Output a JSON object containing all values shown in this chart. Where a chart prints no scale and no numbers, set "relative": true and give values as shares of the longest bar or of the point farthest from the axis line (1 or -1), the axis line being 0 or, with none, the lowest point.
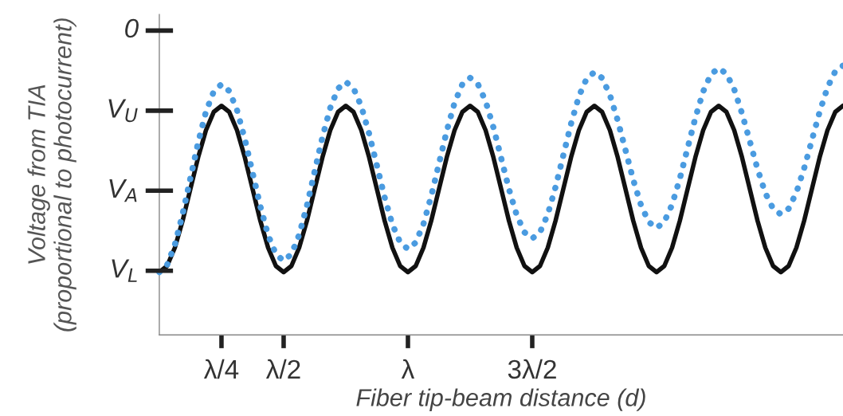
{
  "chart_data": {
    "type": "line",
    "relative": true,
    "xlabel": "Fiber tip-beam distance (d)",
    "ylabel": "Voltage from TIA\n(proportional to photocurrent)",
    "categories": [
      null,
      null,
      null,
      null,
      null,
      null,
      null,
      null,
      "λ/4",
      null,
      null,
      null,
      null,
      null,
      null,
      null,
      "λ/2",
      null,
      null,
      null,
      null,
      null,
      null,
      null,
      null,
      null,
      null,
      null,
      null,
      null,
      null,
      null,
      "λ",
      null,
      null,
      null,
      null,
      null,
      null,
      null,
      null,
      null,
      null,
      null,
      null,
      null,
      null,
      null,
      "3λ/2",
      null,
      null,
      null,
      null,
      null,
      null,
      null,
      null,
      null,
      null,
      null,
      null,
      null,
      null,
      null,
      null,
      null,
      null,
      null,
      null,
      null,
      null,
      null,
      null,
      null,
      null,
      null,
      null,
      null,
      null,
      null,
      null,
      null,
      null,
      null,
      null,
      null,
      null,
      null,
      null
    ],
    "annotations": [
      "0",
      "V$_{U}$",
      "V$_{A}$",
      "V$_{L}$"
    ],
    "series": [
      {
        "color": "#4a9be0",
        "line_style": "dotted",
        "values": [
          0.233,
          0.26,
          0.335,
          0.449,
          0.582,
          0.715,
          0.829,
          0.904,
          0.931,
          0.906,
          0.835,
          0.728,
          0.603,
          0.478,
          0.371,
          0.3,
          0.275,
          0.3,
          0.372,
          0.48,
          0.608,
          0.735,
          0.843,
          0.915,
          0.94,
          0.916,
          0.849,
          0.748,
          0.63,
          0.511,
          0.41,
          0.343,
          0.319,
          0.343,
          0.412,
          0.516,
          0.637,
          0.758,
          0.862,
          0.931,
          0.955,
          0.932,
          0.868,
          0.771,
          0.657,
          0.542,
          0.445,
          0.381,
          0.358,
          0.381,
          0.448,
          0.549,
          0.667,
          0.785,
          0.886,
          0.952,
          0.976,
          0.954,
          0.891,
          0.797,
          0.687,
          0.576,
          0.482,
          0.419,
          0.397,
          0.42,
          0.484,
          0.581,
          0.694,
          0.807,
          0.904,
          0.968,
          0.991,
          0.97,
          0.912,
          0.823,
          0.72,
          0.616,
          0.527,
          0.469,
          0.448,
          0.469,
          0.529,
          0.619,
          0.724,
          0.829,
          0.919,
          0.979,
          1.0
        ]
      },
      {
        "color": "#111111",
        "line_style": "solid",
        "values": [
          0.233,
          0.256,
          0.324,
          0.424,
          0.542,
          0.66,
          0.76,
          0.828,
          0.851,
          0.828,
          0.76,
          0.66,
          0.542,
          0.424,
          0.324,
          0.256,
          0.233,
          0.256,
          0.324,
          0.424,
          0.542,
          0.66,
          0.76,
          0.828,
          0.851,
          0.828,
          0.76,
          0.66,
          0.542,
          0.424,
          0.324,
          0.256,
          0.233,
          0.256,
          0.324,
          0.424,
          0.542,
          0.66,
          0.76,
          0.828,
          0.851,
          0.828,
          0.76,
          0.66,
          0.542,
          0.424,
          0.324,
          0.256,
          0.233,
          0.256,
          0.324,
          0.424,
          0.542,
          0.66,
          0.76,
          0.828,
          0.851,
          0.828,
          0.76,
          0.66,
          0.542,
          0.424,
          0.324,
          0.256,
          0.233,
          0.256,
          0.324,
          0.424,
          0.542,
          0.66,
          0.76,
          0.828,
          0.851,
          0.828,
          0.76,
          0.66,
          0.542,
          0.424,
          0.324,
          0.256,
          0.233,
          0.256,
          0.324,
          0.424,
          0.542,
          0.66,
          0.76,
          0.828,
          0.851
        ]
      }
    ]
  }
}
